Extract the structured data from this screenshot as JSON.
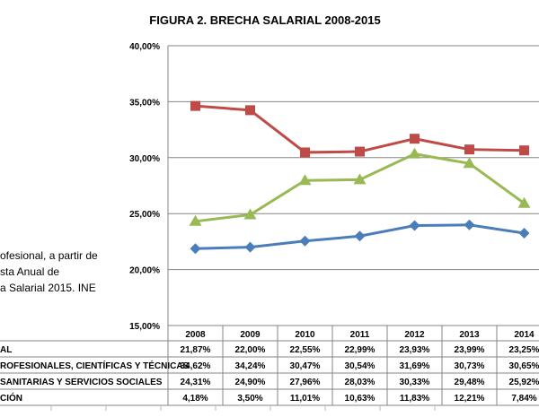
{
  "chart_data": {
    "type": "line",
    "title": "FIGURA 2. BRECHA SALARIAL 2008-2015",
    "categories": [
      "2008",
      "2009",
      "2010",
      "2011",
      "2012",
      "2013",
      "2014"
    ],
    "ylim": [
      0.15,
      0.4
    ],
    "yticks": [
      "15,00%",
      "20,00%",
      "25,00%",
      "30,00%",
      "35,00%",
      "40,00%"
    ],
    "grid": true,
    "legend": "table-below",
    "series": [
      {
        "name": "AL",
        "color": "#4a7ebb",
        "marker": "diamond",
        "values": [
          21.87,
          22.0,
          22.55,
          22.99,
          23.93,
          23.99,
          23.25
        ],
        "labels": [
          "21,87%",
          "22,00%",
          "22,55%",
          "22,99%",
          "23,93%",
          "23,99%",
          "23,25%"
        ]
      },
      {
        "name": "ROFESIONALES, CIENTÍFICAS Y TÉCNICAS",
        "color": "#be4b48",
        "marker": "square",
        "values": [
          34.62,
          34.24,
          30.47,
          30.54,
          31.69,
          30.73,
          30.65
        ],
        "labels": [
          "34,62%",
          "34,24%",
          "30,47%",
          "30,54%",
          "31,69%",
          "30,73%",
          "30,65%"
        ]
      },
      {
        "name": "SANITARIAS Y SERVICIOS SOCIALES",
        "color": "#98b954",
        "marker": "triangle",
        "values": [
          24.31,
          24.9,
          27.96,
          28.03,
          30.33,
          29.48,
          25.92
        ],
        "labels": [
          "24,31%",
          "24,90%",
          "27,96%",
          "28,03%",
          "30,33%",
          "29,48%",
          "25,92%"
        ]
      },
      {
        "name": "CIÓN",
        "color": null,
        "marker": null,
        "values": [
          4.18,
          3.5,
          11.01,
          10.63,
          11.83,
          12.21,
          7.84
        ],
        "labels": [
          "4,18%",
          "3,50%",
          "11,01%",
          "10,63%",
          "11,83%",
          "12,21%",
          "7,84%"
        ]
      }
    ]
  },
  "note_lines": [
    "ofesional, a partir de",
    "sta Anual de",
    "a Salarial 2015. INE"
  ]
}
